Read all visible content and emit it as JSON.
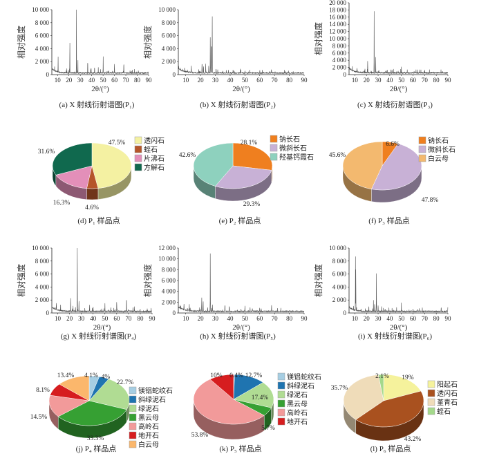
{
  "chart_data": [
    {
      "type": "line",
      "id": "a",
      "caption": "(a) X 射线衍射谱图(P₁)",
      "xlabel": "2θ/(°)",
      "ylabel": "相对强度",
      "xlim": [
        5,
        90
      ],
      "ylim": [
        0,
        10000
      ],
      "xticks": [
        10,
        20,
        30,
        40,
        50,
        60,
        70,
        80,
        90
      ],
      "yticks": [
        0,
        2000,
        4000,
        6000,
        8000,
        10000
      ],
      "ytick_labels": [
        "0",
        "2 000",
        "4 000",
        "6 000",
        "8 000",
        "10 000"
      ],
      "peaks": [
        [
          10.5,
          2400
        ],
        [
          20.8,
          5600
        ],
        [
          26.6,
          10000
        ],
        [
          27.9,
          2000
        ],
        [
          36.5,
          2400
        ],
        [
          39.5,
          1000
        ],
        [
          42.5,
          1200
        ],
        [
          45.8,
          800
        ],
        [
          50.1,
          2600
        ],
        [
          55,
          500
        ],
        [
          60,
          1600
        ],
        [
          68.2,
          1500
        ],
        [
          75,
          300
        ],
        [
          81,
          400
        ]
      ]
    },
    {
      "type": "line",
      "id": "b",
      "caption": "(b) X 射线衍射谱图(P₂)",
      "xlabel": "2θ/(°)",
      "ylabel": "相对强度",
      "xlim": [
        5,
        90
      ],
      "ylim": [
        0,
        10000
      ],
      "xticks": [
        10,
        20,
        30,
        40,
        50,
        60,
        70,
        80,
        90
      ],
      "yticks": [
        0,
        2000,
        4000,
        6000,
        8000,
        10000
      ],
      "ytick_labels": [
        "0",
        "2 000",
        "4 000",
        "6 000",
        "8 000",
        "10 000"
      ],
      "peaks": [
        [
          13.8,
          1300
        ],
        [
          21,
          1600
        ],
        [
          22,
          1200
        ],
        [
          23.5,
          1500
        ],
        [
          25.5,
          1200
        ],
        [
          26.6,
          5400
        ],
        [
          27.5,
          6400
        ],
        [
          27.9,
          9100
        ],
        [
          30.5,
          900
        ],
        [
          35,
          400
        ],
        [
          42,
          600
        ],
        [
          50,
          400
        ],
        [
          60,
          300
        ],
        [
          68,
          400
        ]
      ]
    },
    {
      "type": "line",
      "id": "c",
      "caption": "(c) X 射线衍射谱图(P₃)",
      "xlabel": "2θ/(°)",
      "ylabel": "相对强度",
      "xlim": [
        5,
        90
      ],
      "ylim": [
        0,
        20000
      ],
      "xticks": [
        10,
        20,
        30,
        40,
        50,
        60,
        70,
        80,
        90
      ],
      "yticks": [
        0,
        2000,
        4000,
        6000,
        8000,
        10000,
        12000,
        14000,
        16000,
        18000,
        20000
      ],
      "ytick_labels": [
        "0",
        "2 000",
        "4 000",
        "6 000",
        "8 000",
        "10 000",
        "12 000",
        "14 000",
        "16 000",
        "18 000",
        "20 000"
      ],
      "peaks": [
        [
          21,
          3800
        ],
        [
          24,
          900
        ],
        [
          26.6,
          17200
        ],
        [
          27.9,
          4700
        ],
        [
          36.5,
          700
        ],
        [
          42,
          800
        ],
        [
          50,
          1500
        ],
        [
          60,
          300
        ],
        [
          68,
          300
        ]
      ]
    },
    {
      "type": "line",
      "id": "g",
      "caption": "(g) X 射线衍射谱图(P₄)",
      "xlabel": "2θ/(°)",
      "ylabel": "相对强度",
      "xlim": [
        5,
        90
      ],
      "ylim": [
        0,
        10000
      ],
      "xticks": [
        10,
        20,
        30,
        40,
        50,
        60,
        70,
        80,
        90
      ],
      "yticks": [
        0,
        2000,
        4000,
        6000,
        8000,
        10000
      ],
      "ytick_labels": [
        "0",
        "2 000",
        "4 000",
        "6 000",
        "8 000",
        "10 000"
      ],
      "peaks": [
        [
          8.8,
          1200
        ],
        [
          12.4,
          1000
        ],
        [
          21,
          2400
        ],
        [
          23,
          800
        ],
        [
          25,
          800
        ],
        [
          26.6,
          10000
        ],
        [
          28,
          2000
        ],
        [
          37,
          1200
        ],
        [
          40,
          800
        ],
        [
          50,
          1200
        ],
        [
          55,
          700
        ],
        [
          60,
          1800
        ],
        [
          68.3,
          2600
        ],
        [
          75,
          900
        ],
        [
          80,
          300
        ]
      ]
    },
    {
      "type": "line",
      "id": "h",
      "caption": "(h) X 射线衍射谱图(P₅)",
      "xlabel": "2θ/(°)",
      "ylabel": "相对强度",
      "xlim": [
        5,
        90
      ],
      "ylim": [
        0,
        12000
      ],
      "xticks": [
        10,
        20,
        30,
        40,
        50,
        60,
        70,
        80,
        90
      ],
      "yticks": [
        0,
        2000,
        4000,
        6000,
        8000,
        10000,
        12000
      ],
      "ytick_labels": [
        "0",
        "2 000",
        "4 000",
        "6 000",
        "8 000",
        "10 000",
        "12 000"
      ],
      "peaks": [
        [
          8.8,
          1400
        ],
        [
          12.4,
          1400
        ],
        [
          20.8,
          3000
        ],
        [
          21.8,
          1800
        ],
        [
          24.8,
          800
        ],
        [
          26.6,
          10800
        ],
        [
          28,
          1600
        ],
        [
          36.5,
          1700
        ],
        [
          39.5,
          1400
        ],
        [
          45,
          500
        ],
        [
          50,
          900
        ],
        [
          55,
          500
        ],
        [
          60,
          900
        ],
        [
          68,
          1100
        ],
        [
          80,
          300
        ]
      ]
    },
    {
      "type": "line",
      "id": "i",
      "caption": "(i) X 射线衍射谱图(P₆)",
      "xlabel": "2θ/(°)",
      "ylabel": "相对强度",
      "xlim": [
        5,
        90
      ],
      "ylim": [
        0,
        10000
      ],
      "xticks": [
        10,
        20,
        30,
        40,
        50,
        60,
        70,
        80,
        90
      ],
      "yticks": [
        0,
        2000,
        4000,
        6000,
        8000,
        10000
      ],
      "ytick_labels": [
        "0",
        "2 000",
        "4 000",
        "6 000",
        "8 000",
        "10 000"
      ],
      "peaks": [
        [
          10.5,
          8700
        ],
        [
          10.8,
          7600
        ],
        [
          19,
          400
        ],
        [
          22,
          1000
        ],
        [
          26,
          1700
        ],
        [
          27,
          1400
        ],
        [
          28.5,
          6200
        ],
        [
          30,
          1200
        ],
        [
          33,
          900
        ],
        [
          36,
          500
        ],
        [
          42,
          600
        ],
        [
          50,
          1400
        ],
        [
          60,
          500
        ],
        [
          64,
          400
        ],
        [
          68,
          500
        ]
      ]
    },
    {
      "type": "pie",
      "id": "d",
      "caption": "(d) P₁ 样品点",
      "labels": [
        "透闪石",
        "蛭石",
        "片沸石",
        "方解石"
      ],
      "values": [
        47.5,
        4.6,
        16.3,
        31.6
      ],
      "value_labels": [
        "47.5%",
        "4.6%",
        "16.3%",
        "31.6%"
      ],
      "colors": [
        "#f4f1a2",
        "#b5562a",
        "#e38fb9",
        "#10694e"
      ]
    },
    {
      "type": "pie",
      "id": "e",
      "caption": "(e) P₂ 样品点",
      "labels": [
        "钠长石",
        "微斜长石",
        "羟基钙霞石"
      ],
      "values": [
        28.1,
        29.3,
        42.6
      ],
      "value_labels": [
        "28.1%",
        "29.3%",
        "42.6%"
      ],
      "colors": [
        "#ef7f1f",
        "#c8b1d6",
        "#8ed1be"
      ]
    },
    {
      "type": "pie",
      "id": "f",
      "caption": "(f) P₃ 样品点",
      "labels": [
        "钠长石",
        "微斜长石",
        "白云母"
      ],
      "values": [
        6.6,
        47.8,
        45.6
      ],
      "value_labels": [
        "6.6%",
        "47.8%",
        "45.6%"
      ],
      "colors": [
        "#ef7f1f",
        "#c8b1d6",
        "#f3b96f"
      ]
    },
    {
      "type": "pie",
      "id": "j",
      "caption": "(j) P₄ 样品点",
      "labels": [
        "镁铝蛇纹石",
        "斜绿泥石",
        "绿泥石",
        "黑云母",
        "高岭石",
        "地开石",
        "白云母"
      ],
      "values": [
        4.1,
        4,
        22.7,
        33.3,
        14.5,
        8.1,
        13.4
      ],
      "value_labels": [
        "4.1%",
        "4%",
        "22.7%",
        "33.3%",
        "14.5%",
        "8.1%",
        "13.4%"
      ],
      "colors": [
        "#a6cee3",
        "#1f74b0",
        "#b0dc93",
        "#36a033",
        "#f29a9a",
        "#d61d1f",
        "#fbb76c"
      ]
    },
    {
      "type": "pie",
      "id": "k",
      "caption": "(k) P₅ 样品点",
      "labels": [
        "镁铝蛇纹石",
        "斜绿泥石",
        "绿泥石",
        "黑云母",
        "高岭石",
        "地开石"
      ],
      "values": [
        0.4,
        12.7,
        17.4,
        5.7,
        53.8,
        10
      ],
      "value_labels": [
        "0.4%",
        "12.7%",
        "17.4%",
        "5.7%",
        "53.8%",
        "10%"
      ],
      "colors": [
        "#a6cee3",
        "#1f74b0",
        "#b0dc93",
        "#36a033",
        "#f29a9a",
        "#d61d1f"
      ]
    },
    {
      "type": "pie",
      "id": "l",
      "caption": "(l) P₆ 样品点",
      "labels": [
        "阳起石",
        "透闪石",
        "堇青石",
        "蛭石"
      ],
      "values": [
        19,
        43.2,
        35.7,
        2.1
      ],
      "value_labels": [
        "19%",
        "43.2%",
        "35.7%",
        "2.1%"
      ],
      "colors": [
        "#f5f29c",
        "#a9511f",
        "#efdcb9",
        "#a4d98b"
      ]
    }
  ]
}
